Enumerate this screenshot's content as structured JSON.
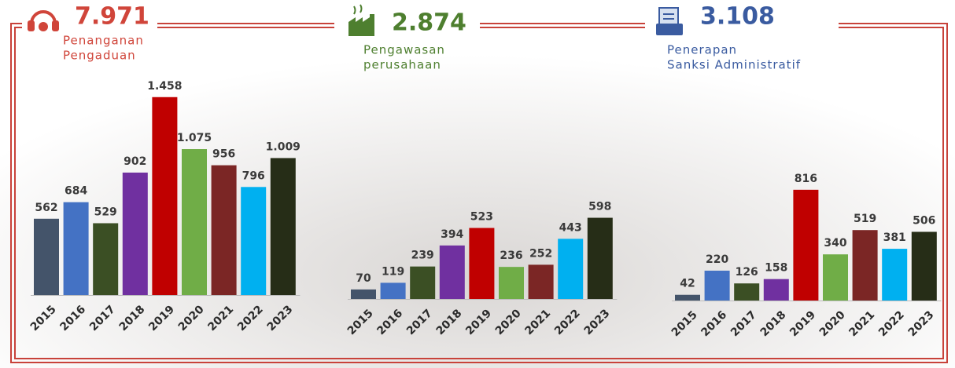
{
  "chart_data": [
    {
      "type": "bar",
      "title": "7.971",
      "subtitle": [
        "Penanganan",
        "Pengaduan"
      ],
      "title_color": "#d0453a",
      "categories": [
        "2015",
        "2016",
        "2017",
        "2018",
        "2019",
        "2020",
        "2021",
        "2022",
        "2023"
      ],
      "values": [
        562,
        684,
        529,
        902,
        1458,
        1075,
        956,
        796,
        1009
      ],
      "value_labels": [
        "562",
        "684",
        "529",
        "902",
        "1.458",
        "1.075",
        "956",
        "796",
        "1.009"
      ],
      "colors": [
        "#44546a",
        "#4472c4",
        "#3b4f24",
        "#7030a0",
        "#c00000",
        "#70ad47",
        "#7b2625",
        "#00b0f0",
        "#262d17"
      ]
    },
    {
      "type": "bar",
      "title": "2.874",
      "subtitle": [
        "Pengawasan",
        "perusahaan"
      ],
      "title_color": "#4e7f2f",
      "categories": [
        "2015",
        "2016",
        "2017",
        "2018",
        "2019",
        "2020",
        "2021",
        "2022",
        "2023"
      ],
      "values": [
        70,
        119,
        239,
        394,
        523,
        236,
        252,
        443,
        598
      ],
      "value_labels": [
        "70",
        "119",
        "239",
        "394",
        "523",
        "236",
        "252",
        "443",
        "598"
      ],
      "colors": [
        "#44546a",
        "#4472c4",
        "#3b4f24",
        "#7030a0",
        "#c00000",
        "#70ad47",
        "#7b2625",
        "#00b0f0",
        "#262d17"
      ]
    },
    {
      "type": "bar",
      "title": "3.108",
      "subtitle": [
        "Penerapan",
        "Sanksi Administratif"
      ],
      "title_color": "#3a5ba0",
      "categories": [
        "2015",
        "2016",
        "2017",
        "2018",
        "2019",
        "2020",
        "2021",
        "2022",
        "2023"
      ],
      "values": [
        42,
        220,
        126,
        158,
        816,
        340,
        519,
        381,
        506
      ],
      "value_labels": [
        "42",
        "220",
        "126",
        "158",
        "816",
        "340",
        "519",
        "381",
        "506"
      ],
      "colors": [
        "#44546a",
        "#4472c4",
        "#3b4f24",
        "#7030a0",
        "#c00000",
        "#70ad47",
        "#7b2625",
        "#00b0f0",
        "#262d17"
      ]
    }
  ]
}
